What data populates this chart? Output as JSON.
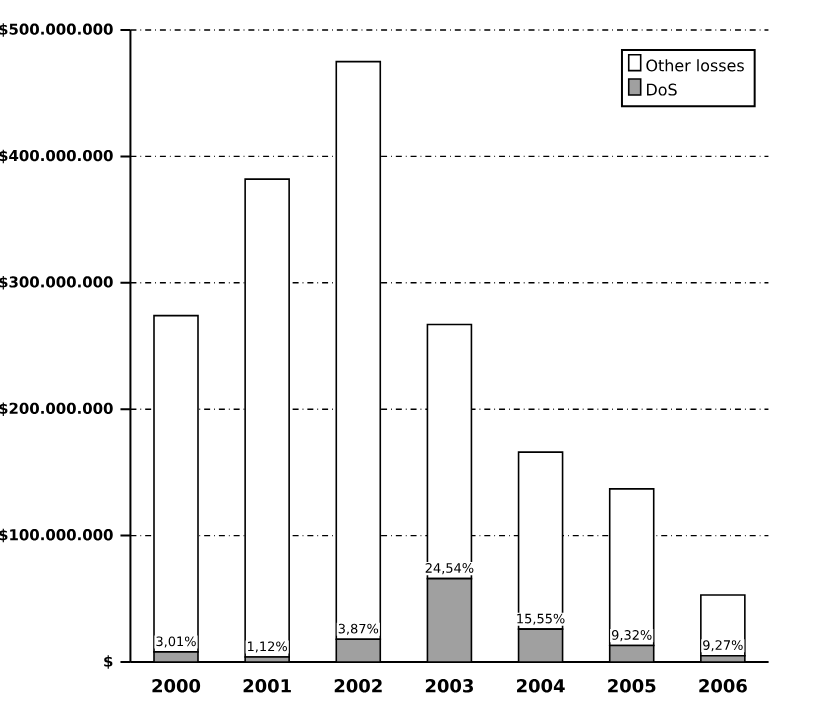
{
  "chart_data": {
    "type": "bar",
    "stacked": true,
    "categories": [
      "2000",
      "2001",
      "2002",
      "2003",
      "2004",
      "2005",
      "2006"
    ],
    "series": [
      {
        "name": "DoS",
        "color": "#a0a0a0",
        "values": [
          8000000,
          4000000,
          18000000,
          66000000,
          26000000,
          13000000,
          5000000
        ]
      },
      {
        "name": "Other losses",
        "color": "#ffffff",
        "values": [
          266000000,
          378000000,
          457000000,
          201000000,
          140000000,
          124000000,
          48000000
        ]
      }
    ],
    "annotations": [
      {
        "text": "3,01%",
        "x": "2000",
        "y": 8000000
      },
      {
        "text": "1,12%",
        "x": "2001",
        "y": 4000000
      },
      {
        "text": "3,87%",
        "x": "2002",
        "y": 18000000
      },
      {
        "text": "24,54%",
        "x": "2003",
        "y": 66000000
      },
      {
        "text": "15,55%",
        "x": "2004",
        "y": 26000000
      },
      {
        "text": "9,32%",
        "x": "2005",
        "y": 13000000
      },
      {
        "text": "9,27%",
        "x": "2006",
        "y": 5000000
      }
    ],
    "ylim": [
      0,
      500000000
    ],
    "yticks": [
      {
        "value": 0,
        "label": "$"
      },
      {
        "value": 100000000,
        "label": "$100.000.000"
      },
      {
        "value": 200000000,
        "label": "$200.000.000"
      },
      {
        "value": 300000000,
        "label": "$300.000.000"
      },
      {
        "value": 400000000,
        "label": "$400.000.000"
      },
      {
        "value": 500000000,
        "label": "$500.000.000"
      }
    ],
    "grid": "y",
    "legend": "top right"
  }
}
